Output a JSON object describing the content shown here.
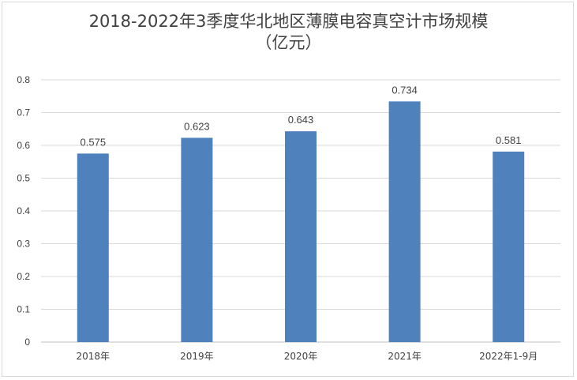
{
  "chart_data": {
    "type": "bar",
    "title_lines": [
      "2018-2022年3季度华北地区薄膜电容真空计市场规模",
      "（亿元）"
    ],
    "categories": [
      "2018年",
      "2019年",
      "2020年",
      "2021年",
      "2022年1-9月"
    ],
    "values": [
      0.575,
      0.623,
      0.643,
      0.734,
      0.581
    ],
    "data_labels": [
      "0.575",
      "0.623",
      "0.643",
      "0.734",
      "0.581"
    ],
    "y_ticks": [
      "0",
      "0.1",
      "0.2",
      "0.3",
      "0.4",
      "0.5",
      "0.6",
      "0.7",
      "0.8"
    ],
    "ylim": [
      0,
      0.8
    ],
    "grid": true,
    "bar_color": "#4f81bd"
  }
}
